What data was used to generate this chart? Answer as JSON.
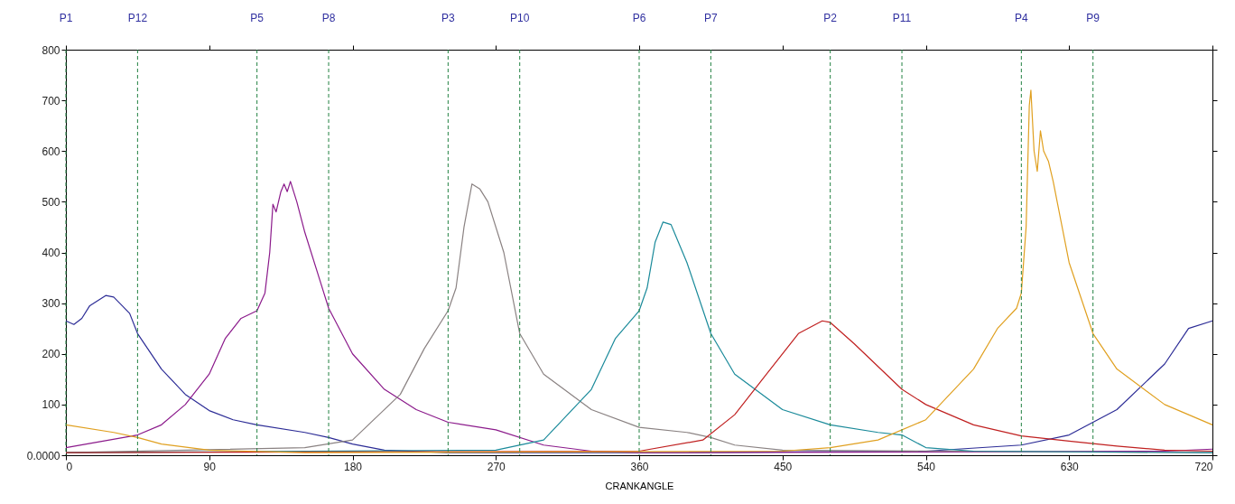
{
  "chart_data": {
    "type": "line",
    "xlabel": "CRANKANGLE",
    "xlim": [
      0,
      720
    ],
    "xticks": [
      0,
      90,
      180,
      270,
      360,
      450,
      540,
      630,
      720
    ],
    "ylim": [
      0,
      800
    ],
    "yticks": [
      {
        "value": 0,
        "label": "0.0000"
      },
      100,
      200,
      300,
      400,
      500,
      600,
      700,
      800
    ],
    "grid": false,
    "legend": false,
    "marker": "none",
    "line_style": "solid",
    "series": [
      {
        "color": "#2c2c96",
        "x": [
          0,
          5,
          10,
          15,
          25,
          30,
          40,
          45,
          60,
          75,
          90,
          105,
          120,
          150,
          165,
          180,
          200,
          240,
          360,
          540,
          600,
          630,
          660,
          690,
          705,
          720
        ],
        "values": [
          265,
          258,
          270,
          295,
          315,
          312,
          280,
          240,
          170,
          120,
          88,
          70,
          60,
          45,
          35,
          22,
          10,
          5,
          5,
          8,
          20,
          40,
          90,
          180,
          250,
          265
        ]
      },
      {
        "color": "#8b1a8b",
        "x": [
          0,
          45,
          60,
          75,
          90,
          100,
          110,
          120,
          125,
          128,
          130,
          132,
          135,
          137,
          139,
          141,
          145,
          150,
          160,
          165,
          180,
          200,
          220,
          240,
          270,
          300,
          330,
          360,
          690,
          720
        ],
        "values": [
          15,
          40,
          60,
          100,
          160,
          230,
          270,
          285,
          320,
          400,
          495,
          480,
          520,
          535,
          520,
          540,
          500,
          440,
          340,
          290,
          200,
          130,
          90,
          65,
          50,
          20,
          8,
          5,
          8,
          12
        ]
      },
      {
        "color": "#8a8282",
        "x": [
          0,
          150,
          180,
          210,
          225,
          240,
          245,
          250,
          255,
          260,
          265,
          275,
          285,
          300,
          330,
          360,
          390,
          405,
          420,
          450,
          720
        ],
        "values": [
          5,
          15,
          30,
          120,
          210,
          285,
          330,
          450,
          535,
          525,
          500,
          400,
          240,
          160,
          90,
          55,
          45,
          35,
          20,
          10,
          5
        ]
      },
      {
        "color": "#1a8a9a",
        "x": [
          0,
          270,
          300,
          330,
          345,
          360,
          365,
          370,
          375,
          380,
          390,
          405,
          420,
          450,
          480,
          510,
          525,
          540,
          570,
          720
        ],
        "values": [
          5,
          10,
          30,
          130,
          230,
          285,
          330,
          420,
          460,
          455,
          380,
          240,
          160,
          90,
          60,
          45,
          40,
          15,
          8,
          5
        ]
      },
      {
        "color": "#c02020",
        "x": [
          0,
          360,
          400,
          420,
          440,
          460,
          475,
          480,
          495,
          525,
          540,
          570,
          600,
          630,
          660,
          690,
          720
        ],
        "values": [
          5,
          8,
          30,
          80,
          160,
          240,
          265,
          262,
          220,
          130,
          100,
          60,
          38,
          28,
          18,
          10,
          8
        ]
      },
      {
        "color": "#e0a020",
        "x": [
          0,
          30,
          45,
          60,
          90,
          150,
          450,
          480,
          510,
          540,
          570,
          585,
          597,
          600,
          603,
          605,
          606,
          608,
          610,
          612,
          614,
          617,
          620,
          630,
          645,
          660,
          690,
          720
        ],
        "values": [
          60,
          45,
          35,
          22,
          10,
          5,
          8,
          15,
          30,
          70,
          170,
          250,
          290,
          320,
          450,
          690,
          720,
          600,
          560,
          640,
          600,
          580,
          540,
          380,
          240,
          170,
          100,
          60
        ]
      }
    ],
    "ref_lines": [
      {
        "axis": "x",
        "value": 0,
        "label": "P1",
        "color": "#208040",
        "line_style": "dashed"
      },
      {
        "axis": "x",
        "value": 45,
        "label": "P12",
        "color": "#208040",
        "line_style": "dashed"
      },
      {
        "axis": "x",
        "value": 120,
        "label": "P5",
        "color": "#208040",
        "line_style": "dashed"
      },
      {
        "axis": "x",
        "value": 165,
        "label": "P8",
        "color": "#208040",
        "line_style": "dashed"
      },
      {
        "axis": "x",
        "value": 240,
        "label": "P3",
        "color": "#208040",
        "line_style": "dashed"
      },
      {
        "axis": "x",
        "value": 285,
        "label": "P10",
        "color": "#208040",
        "line_style": "dashed"
      },
      {
        "axis": "x",
        "value": 360,
        "label": "P6",
        "color": "#208040",
        "line_style": "dashed"
      },
      {
        "axis": "x",
        "value": 405,
        "label": "P7",
        "color": "#208040",
        "line_style": "dashed"
      },
      {
        "axis": "x",
        "value": 480,
        "label": "P2",
        "color": "#208040",
        "line_style": "dashed"
      },
      {
        "axis": "x",
        "value": 525,
        "label": "P11",
        "color": "#208040",
        "line_style": "dashed"
      },
      {
        "axis": "x",
        "value": 600,
        "label": "P4",
        "color": "#208040",
        "line_style": "dashed"
      },
      {
        "axis": "x",
        "value": 645,
        "label": "P9",
        "color": "#208040",
        "line_style": "dashed"
      }
    ]
  }
}
